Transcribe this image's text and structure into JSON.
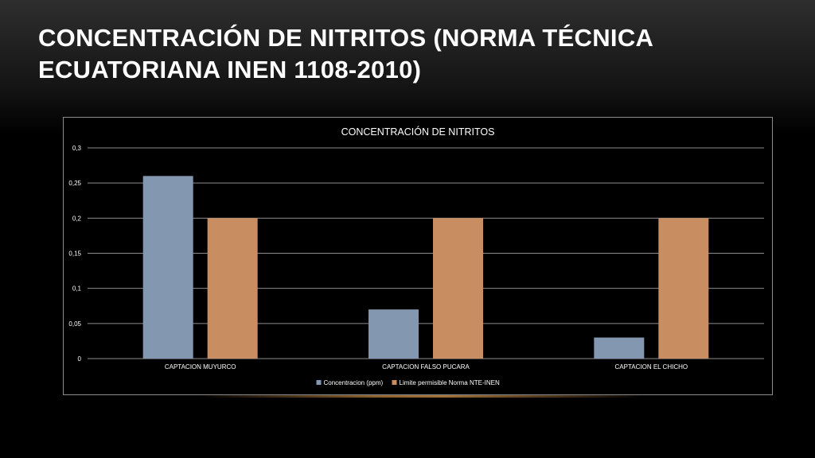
{
  "slide": {
    "title": "CONCENTRACIÓN DE NITRITOS (NORMA TÉCNICA ECUATORIANA INEN 1108-2010)"
  },
  "chart_data": {
    "type": "bar",
    "title": "CONCENTRACIÓN DE NITRITOS",
    "categories": [
      "CAPTACION MUYURCO",
      "CAPTACION FALSO PUCARA",
      "CAPTACION EL CHICHO"
    ],
    "series": [
      {
        "name": "Concentracion (ppm)",
        "values": [
          0.26,
          0.07,
          0.03
        ],
        "color": "#8497b0"
      },
      {
        "name": "Limite permisible Norma NTE-INEN",
        "values": [
          0.2,
          0.2,
          0.2
        ],
        "color": "#c98d62"
      }
    ],
    "ylim": [
      0,
      0.3
    ],
    "yticks": [
      0,
      0.05,
      0.1,
      0.15,
      0.2,
      0.25,
      0.3
    ],
    "ytick_labels": [
      "0",
      "0,05",
      "0,1",
      "0,15",
      "0,2",
      "0,25",
      "0,3"
    ],
    "xlabel": "",
    "ylabel": "",
    "grid": true,
    "legend_position": "bottom"
  },
  "colors": {
    "text": "#ffffff",
    "gridline": "#8c8c8c",
    "background": "#000000"
  }
}
